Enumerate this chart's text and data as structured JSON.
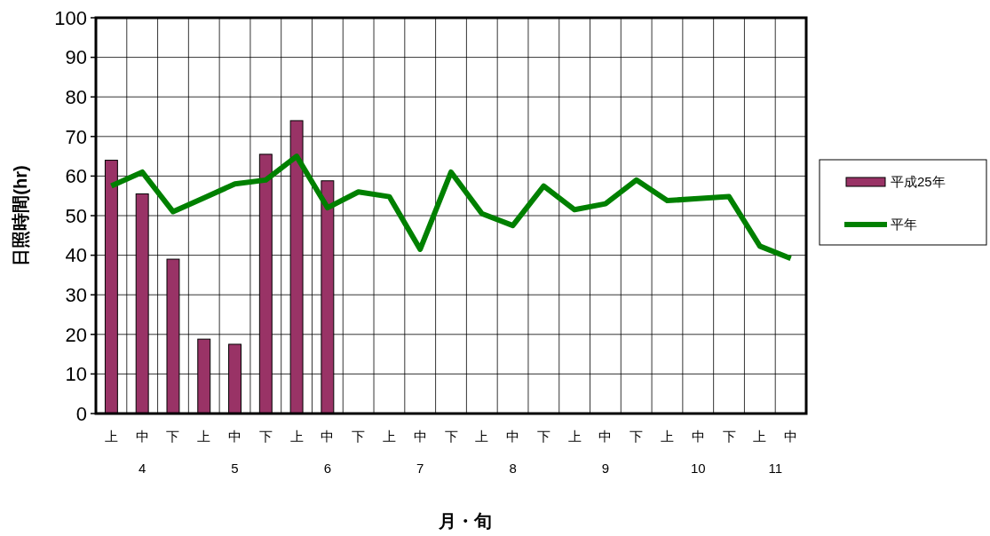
{
  "chart_data": {
    "type": "bar",
    "ylabel": "日照時間(hr)",
    "xlabel": "月・旬",
    "categories": [
      "上",
      "中",
      "下",
      "上",
      "中",
      "下",
      "上",
      "中",
      "下",
      "上",
      "中",
      "下",
      "上",
      "中",
      "下",
      "上",
      "中",
      "下",
      "上",
      "中",
      "下",
      "上",
      "中"
    ],
    "annotations": [
      "4",
      "5",
      "6",
      "7",
      "8",
      "9",
      "10",
      "11"
    ],
    "series": [
      {
        "name": "平成25年",
        "color": "#993366",
        "values": [
          64,
          55.5,
          39,
          18.8,
          17.5,
          65.5,
          74,
          58.8,
          null,
          null,
          null,
          null,
          null,
          null,
          null,
          null,
          null,
          null,
          null,
          null,
          null,
          null,
          null
        ]
      },
      {
        "name": "平年",
        "type": "line",
        "color": "#008000",
        "values": [
          57.5,
          61,
          51,
          54.5,
          58,
          59,
          65,
          52,
          56,
          54.8,
          41.5,
          61,
          50.5,
          47.5,
          57.5,
          51.5,
          53,
          59,
          53.8,
          54.3,
          54.8,
          42.3,
          39.2
        ]
      }
    ],
    "ylim": [
      0,
      100
    ],
    "yticks": [
      0,
      10,
      20,
      30,
      40,
      50,
      60,
      70,
      80,
      90,
      100
    ],
    "grid": true,
    "legend": "right",
    "marker": "none",
    "line_style": "solid"
  }
}
